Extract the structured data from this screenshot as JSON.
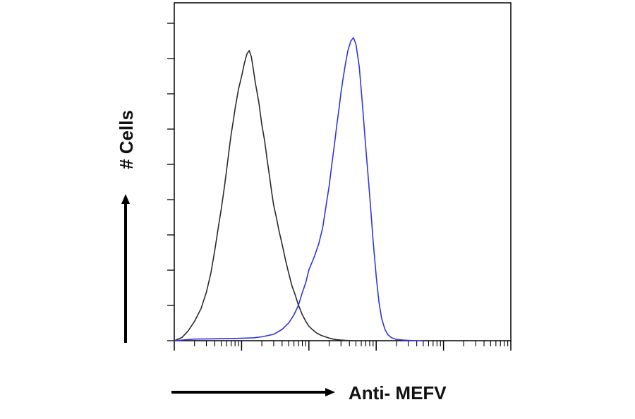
{
  "chart_data": {
    "type": "line",
    "title": "",
    "xlabel": "Anti- MEFV",
    "ylabel": "# Cells",
    "x_scale": "log",
    "xlim": [
      1,
      100000
    ],
    "ylim": [
      0,
      100
    ],
    "grid": false,
    "legend": "none",
    "series": [
      {
        "color": "#2b2b2b",
        "x": [
          1,
          1.3,
          1.6,
          2,
          2.5,
          3,
          3.5,
          4,
          4.5,
          5,
          5.5,
          6,
          6.5,
          7,
          7.5,
          8,
          9,
          10,
          11,
          12,
          13,
          14,
          15,
          16,
          18,
          20,
          22,
          24,
          26,
          28,
          30,
          33,
          36,
          40,
          45,
          50,
          56,
          63,
          70,
          80,
          90,
          100,
          115,
          130,
          150,
          175,
          200,
          230,
          260,
          300,
          350,
          400,
          460,
          530,
          600
        ],
        "y": [
          0,
          1,
          3,
          6,
          10,
          15,
          21,
          28,
          35,
          41,
          47,
          53,
          59,
          64,
          68,
          72,
          78,
          82,
          86,
          89,
          90,
          88,
          84,
          80,
          74,
          67,
          62,
          56,
          51,
          46,
          42,
          38,
          34,
          30,
          25,
          21,
          17,
          14,
          11,
          8,
          6,
          4.5,
          3.3,
          2.4,
          1.7,
          1.2,
          0.8,
          0.5,
          0.3,
          0.2,
          0.1,
          0.05,
          0,
          0,
          0
        ]
      },
      {
        "color": "#3434e0",
        "x": [
          1,
          2,
          4,
          8,
          15,
          20,
          30,
          40,
          50,
          60,
          70,
          80,
          90,
          100,
          120,
          140,
          160,
          180,
          200,
          220,
          240,
          260,
          280,
          300,
          320,
          350,
          380,
          420,
          460,
          500,
          560,
          620,
          700,
          800,
          900,
          1000,
          1100,
          1200,
          1350,
          1500,
          1700,
          2000,
          2500,
          3000,
          4000,
          5000
        ],
        "y": [
          0,
          0.5,
          0.6,
          0.7,
          0.9,
          1.2,
          2,
          3.5,
          5.5,
          8,
          11,
          15,
          18,
          22,
          26,
          30,
          35,
          42,
          48,
          55,
          61,
          67,
          72,
          77,
          81,
          86,
          90,
          93,
          94,
          92,
          85,
          74,
          60,
          45,
          31,
          20,
          12,
          7,
          3.5,
          1.8,
          0.9,
          0.4,
          0.2,
          0.1,
          0,
          0
        ]
      }
    ]
  }
}
